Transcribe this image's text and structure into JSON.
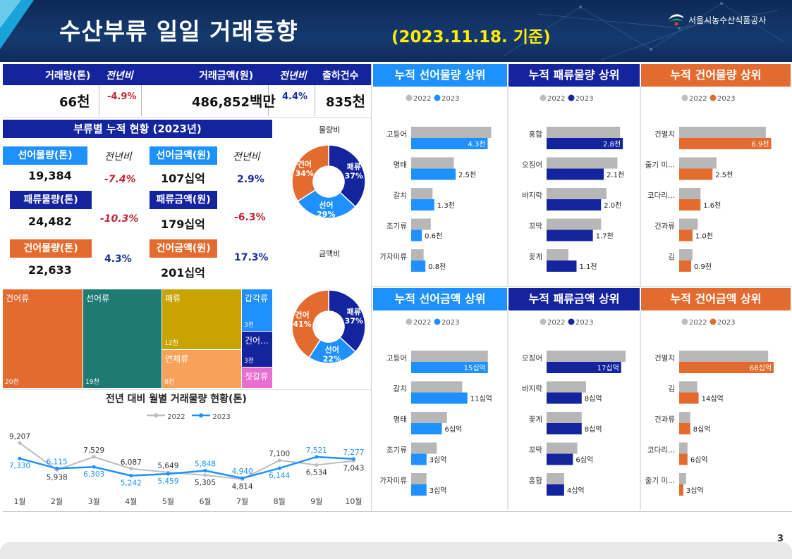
{
  "header": {
    "title": "수산부류 일일 거래동향",
    "date": "(2023.11.18. 기준)",
    "org": "서울시농수산식품공사"
  },
  "kpi": {
    "vol_label": "거래량(톤)",
    "vol_yoy_label": "전년비",
    "amt_label": "거래금액(원)",
    "amt_yoy_label": "전년비",
    "ship_label": "출하건수",
    "vol_value": "66",
    "vol_unit": "천",
    "vol_yoy": "-4.9%",
    "amt_value": "486,852",
    "amt_unit": "백만",
    "amt_yoy": "4.4%",
    "ship_value": "835",
    "ship_unit": "천"
  },
  "cumulative": {
    "title": "부류별 누적 현황 (2023년)",
    "yoy_label_1": "전년비",
    "yoy_label_2": "전년비",
    "fresh_vol_label": "선어물량(톤)",
    "fresh_vol": "19,384",
    "fresh_vol_yoy": "-7.4%",
    "fresh_amt_label": "선어금액(원)",
    "fresh_amt": "107십억",
    "fresh_amt_yoy": "2.9%",
    "shell_vol_label": "패류물량(톤)",
    "shell_vol": "24,482",
    "shell_vol_yoy": "-10.3%",
    "shell_amt_label": "패류금액(원)",
    "shell_amt": "179십억",
    "shell_amt_yoy": "-6.3%",
    "dried_vol_label": "건어물량(톤)",
    "dried_vol": "22,633",
    "dried_vol_yoy": "4.3%",
    "dried_amt_label": "건어금액(원)",
    "dried_amt": "201십억",
    "dried_amt_yoy": "17.3%"
  },
  "donut1": {
    "title": "물량비",
    "slices": [
      {
        "name": "패류",
        "pct": 37,
        "label": "37%",
        "color": "#14239e"
      },
      {
        "name": "선어",
        "pct": 29,
        "label": "29%",
        "color": "#1e90ff"
      },
      {
        "name": "건어",
        "pct": 34,
        "label": "34%",
        "color": "#e46b2f"
      }
    ]
  },
  "donut2": {
    "title": "금액비",
    "slices": [
      {
        "name": "패류",
        "pct": 37,
        "label": "37%",
        "color": "#14239e"
      },
      {
        "name": "선어",
        "pct": 22,
        "label": "22%",
        "color": "#1e90ff"
      },
      {
        "name": "건어",
        "pct": 41,
        "label": "41%",
        "color": "#e46b2f"
      }
    ]
  },
  "treemap": {
    "cells": [
      {
        "name": "건어류",
        "value": "20천",
        "color": "#e46b2f"
      },
      {
        "name": "선어류",
        "value": "19천",
        "color": "#1f7a73"
      },
      {
        "name": "패류",
        "value": "12천",
        "color": "#c9a400"
      },
      {
        "name": "연체류",
        "value": "8천",
        "color": "#f7a25a"
      },
      {
        "name": "갑각류",
        "value": "3천",
        "color": "#1e90ff"
      },
      {
        "name": "건어...",
        "value": "3천",
        "color": "#14239e"
      },
      {
        "name": "젓갈류",
        "value": "",
        "color": "#e86fd0"
      }
    ]
  },
  "monthly": {
    "title": "전년 대비 월별 거래물량 현황(톤)",
    "legend_2022": "2022",
    "legend_2023": "2023",
    "color_2022": "#bdbdbd",
    "color_2023": "#1e90ff"
  },
  "panels": {
    "p1": {
      "title": "누적 선어물량 상위",
      "color": "#1e90ff",
      "legend_a": "2022",
      "legend_b": "2023"
    },
    "p2": {
      "title": "누적 패류물량 상위",
      "color": "#14239e",
      "legend_a": "2022",
      "legend_b": "2023"
    },
    "p3": {
      "title": "누적 건어물량 상위",
      "color": "#e46b2f",
      "legend_a": "2022",
      "legend_b": "2023"
    },
    "p4": {
      "title": "누적 선어금액 상위",
      "color": "#1e90ff",
      "legend_a": "2022",
      "legend_b": "2023"
    },
    "p5": {
      "title": "누적 패류금액 상위",
      "color": "#14239e",
      "legend_a": "2022",
      "legend_b": "2023"
    },
    "p6": {
      "title": "누적 건어금액 상위",
      "color": "#e46b2f",
      "legend_a": "2022",
      "legend_b": "2023"
    }
  },
  "page_number": "3",
  "chart_data": [
    {
      "type": "line",
      "title": "전년 대비 월별 거래물량 현황(톤)",
      "categories": [
        "1월",
        "2월",
        "3월",
        "4월",
        "5월",
        "6월",
        "7월",
        "8월",
        "9월",
        "10월"
      ],
      "series": [
        {
          "name": "2022",
          "values": [
            9207,
            5938,
            7529,
            6087,
            5649,
            5305,
            4814,
            7100,
            6534,
            7043
          ],
          "labels": [
            "9,207",
            "5,938",
            "7,529",
            "6,087",
            "5,649",
            "5,305",
            "4,814",
            "7,100",
            "6,534",
            "7,043"
          ]
        },
        {
          "name": "2023",
          "values": [
            7330,
            6115,
            6303,
            5242,
            5459,
            5848,
            4940,
            6144,
            7521,
            7277
          ],
          "labels": [
            "7,330",
            "6,115",
            "6,303",
            "5,242",
            "5,459",
            "5,848",
            "4,940",
            "6,144",
            "7,521",
            "7,277"
          ]
        }
      ],
      "ylim": [
        3500,
        10000
      ]
    },
    {
      "type": "bar",
      "title": "누적 선어물량 상위",
      "color": "#1e90ff",
      "max": 4.6,
      "categories": [
        "고등어",
        "명태",
        "갈치",
        "조기류",
        "가자미류"
      ],
      "series": [
        {
          "name": "2022",
          "values": [
            4.5,
            2.4,
            1.2,
            1.1,
            0.7
          ]
        },
        {
          "name": "2023",
          "values": [
            4.3,
            2.5,
            1.3,
            0.6,
            0.8
          ],
          "labels": [
            "4.3천",
            "2.5천",
            "1.3천",
            "0.6천",
            "0.8천"
          ]
        }
      ]
    },
    {
      "type": "bar",
      "title": "누적 패류물량 상위",
      "color": "#14239e",
      "max": 2.9,
      "categories": [
        "홍합",
        "오징어",
        "바지락",
        "꼬막",
        "꽃게"
      ],
      "series": [
        {
          "name": "2022",
          "values": [
            2.7,
            2.6,
            2.2,
            2.0,
            0.8
          ]
        },
        {
          "name": "2023",
          "values": [
            2.8,
            2.1,
            2.0,
            1.7,
            1.1
          ],
          "labels": [
            "2.8천",
            "2.1천",
            "2.0천",
            "1.7천",
            "1.1천"
          ]
        }
      ]
    },
    {
      "type": "bar",
      "title": "누적 건어물량 상위",
      "color": "#e46b2f",
      "max": 7.3,
      "categories": [
        "건멸치",
        "줄기 미...",
        "코다리...",
        "건과류",
        "김"
      ],
      "series": [
        {
          "name": "2022",
          "values": [
            6.5,
            2.8,
            1.6,
            1.4,
            1.0
          ]
        },
        {
          "name": "2023",
          "values": [
            6.9,
            2.5,
            1.6,
            1.0,
            0.9
          ],
          "labels": [
            "6.9천",
            "2.5천",
            "1.6천",
            "1.0천",
            "0.9천"
          ]
        }
      ]
    },
    {
      "type": "bar",
      "title": "누적 선어금액 상위",
      "color": "#1e90ff",
      "max": 16,
      "categories": [
        "고등어",
        "갈치",
        "명태",
        "조기류",
        "가자미류"
      ],
      "series": [
        {
          "name": "2022",
          "values": [
            15,
            10,
            7,
            5,
            3
          ]
        },
        {
          "name": "2023",
          "values": [
            15,
            11,
            6,
            3,
            3
          ],
          "labels": [
            "15십억",
            "11십억",
            "6십억",
            "3십억",
            "3십억"
          ]
        }
      ]
    },
    {
      "type": "bar",
      "title": "누적 패류금액 상위",
      "color": "#14239e",
      "max": 18,
      "categories": [
        "오징어",
        "바지락",
        "꽃게",
        "꼬막",
        "홍합"
      ],
      "series": [
        {
          "name": "2022",
          "values": [
            18,
            9,
            8,
            7,
            4
          ]
        },
        {
          "name": "2023",
          "values": [
            17,
            8,
            8,
            6,
            4
          ],
          "labels": [
            "17십억",
            "8십억",
            "8십억",
            "6십억",
            "4십억"
          ]
        }
      ]
    },
    {
      "type": "bar",
      "title": "누적 건어금액 상위",
      "color": "#e46b2f",
      "max": 70,
      "categories": [
        "건멸치",
        "김",
        "건과류",
        "코다리...",
        "줄기 미..."
      ],
      "series": [
        {
          "name": "2022",
          "values": [
            64,
            13,
            8,
            6,
            5
          ]
        },
        {
          "name": "2023",
          "values": [
            68,
            14,
            8,
            6,
            3
          ],
          "labels": [
            "68십억",
            "14십억",
            "8십억",
            "6십억",
            "3십억"
          ]
        }
      ]
    }
  ]
}
